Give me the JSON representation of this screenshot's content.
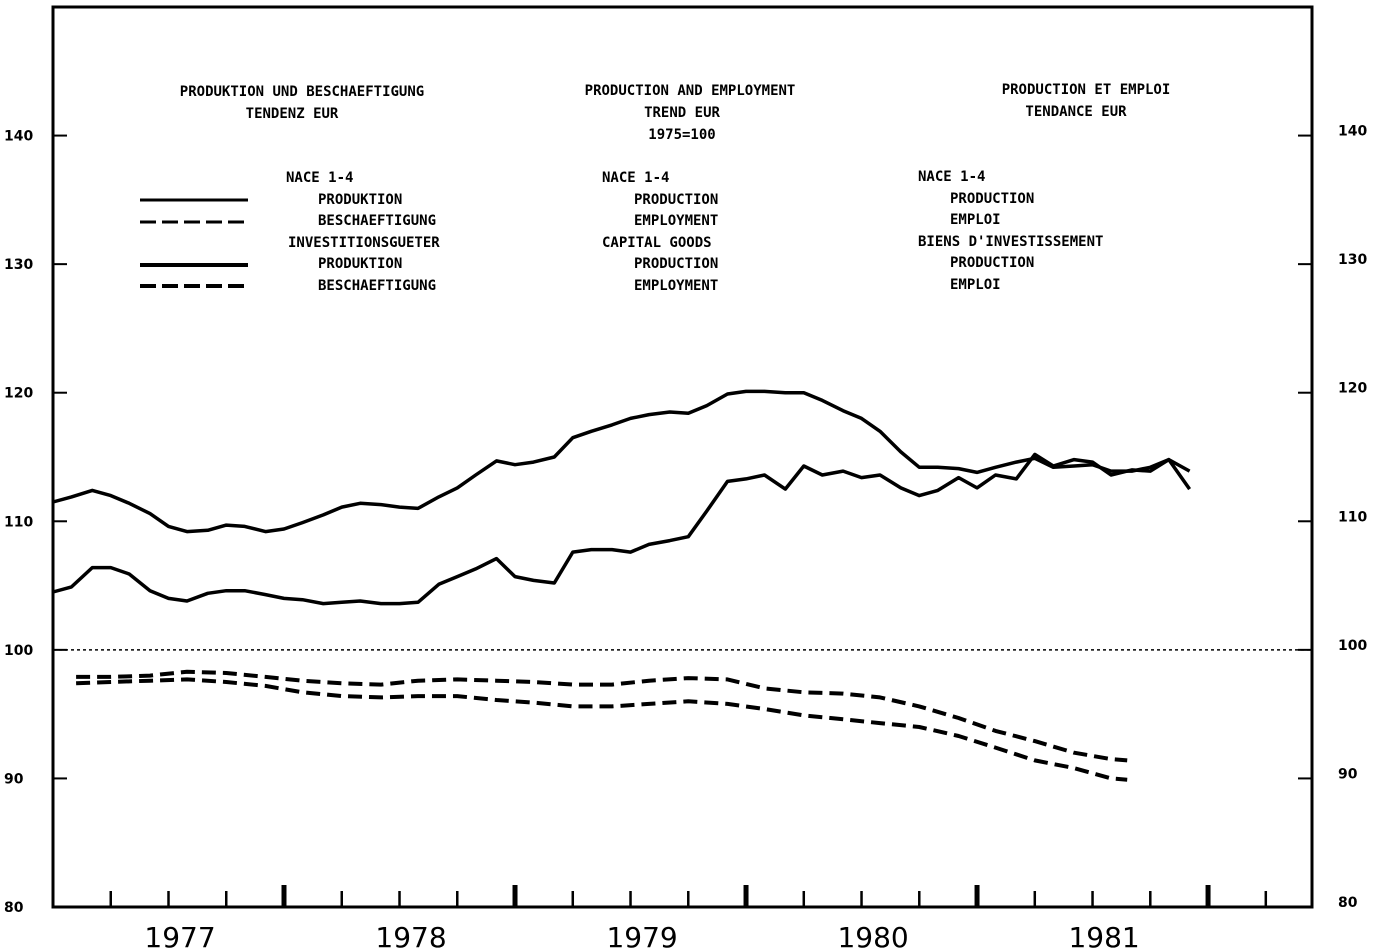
{
  "titles": [
    {
      "line1": "PRODUKTION UND BESCHAEFTIGUNG",
      "line2": "TENDENZ EUR",
      "line3": ""
    },
    {
      "line1": "PRODUCTION AND EMPLOYMENT",
      "line2": "TREND EUR",
      "line3": "1975=100"
    },
    {
      "line1": "PRODUCTION ET EMPLOI",
      "line2": "TENDANCE EUR",
      "line3": ""
    }
  ],
  "legend": {
    "de": [
      "NACE 1-4",
      "PRODUKTION",
      "BESCHAEFTIGUNG",
      "INVESTITIONSGUETER",
      "PRODUKTION",
      "BESCHAEFTIGUNG"
    ],
    "en": [
      "NACE 1-4",
      "PRODUCTION",
      "EMPLOYMENT",
      "CAPITAL GOODS",
      "PRODUCTION",
      "EMPLOYMENT"
    ],
    "fr": [
      "NACE 1-4",
      "PRODUCTION",
      "EMPLOI",
      "BIENS D'INVESTISSEMENT",
      "PRODUCTION",
      "EMPLOI"
    ]
  },
  "chart_data": {
    "type": "line",
    "ylim": [
      80,
      150
    ],
    "yticks": [
      80,
      90,
      100,
      110,
      120,
      130,
      140
    ],
    "xlim": [
      1976.5,
      1981.95
    ],
    "xlabels": [
      "1977",
      "1978",
      "1979",
      "1980",
      "1981"
    ],
    "reference_line": 100,
    "series": [
      {
        "name": "NACE 1-4 PRODUKTION",
        "style": "solid",
        "x": [
          1976.5,
          1976.58,
          1976.67,
          1976.75,
          1976.83,
          1976.92,
          1977.0,
          1977.08,
          1977.17,
          1977.25,
          1977.33,
          1977.42,
          1977.5,
          1977.58,
          1977.67,
          1977.75,
          1977.83,
          1977.92,
          1978.0,
          1978.08,
          1978.17,
          1978.25,
          1978.33,
          1978.42,
          1978.5,
          1978.58,
          1978.67,
          1978.75,
          1978.83,
          1978.92,
          1979.0,
          1979.08,
          1979.17,
          1979.25,
          1979.33,
          1979.42,
          1979.5,
          1979.58,
          1979.67,
          1979.75,
          1979.83,
          1979.92,
          1980.0,
          1980.08,
          1980.17,
          1980.25,
          1980.33,
          1980.42,
          1980.5,
          1980.58,
          1980.67,
          1980.75,
          1980.83,
          1980.92,
          1981.0,
          1981.08,
          1981.17,
          1981.25,
          1981.33,
          1981.42
        ],
        "y": [
          111.5,
          111.9,
          112.4,
          112.0,
          111.4,
          110.6,
          109.6,
          109.2,
          109.3,
          109.7,
          109.6,
          109.2,
          109.4,
          109.9,
          110.5,
          111.1,
          111.4,
          111.3,
          111.1,
          111.0,
          111.9,
          112.6,
          113.6,
          114.7,
          114.4,
          114.6,
          115.0,
          116.5,
          117.0,
          117.5,
          118.0,
          118.3,
          118.5,
          118.4,
          119.0,
          119.9,
          120.1,
          120.1,
          120.0,
          120.0,
          119.4,
          118.6,
          118.0,
          117.0,
          115.4,
          114.2,
          114.2,
          114.1,
          113.8,
          114.2,
          114.6,
          114.9,
          114.2,
          114.3,
          114.4,
          113.9,
          113.9,
          114.2,
          114.8,
          113.9
        ]
      },
      {
        "name": "NACE 1-4 BESCHAEFTIGUNG",
        "style": "dashed",
        "x": [
          1976.6,
          1976.75,
          1976.92,
          1977.08,
          1977.25,
          1977.42,
          1977.58,
          1977.75,
          1977.92,
          1978.08,
          1978.25,
          1978.42,
          1978.58,
          1978.75,
          1978.92,
          1979.08,
          1979.25,
          1979.42,
          1979.58,
          1979.75,
          1979.92,
          1980.08,
          1980.25,
          1980.42,
          1980.58,
          1980.75,
          1980.92,
          1981.08,
          1981.15
        ],
        "y": [
          97.9,
          97.9,
          98.0,
          98.3,
          98.2,
          97.9,
          97.6,
          97.4,
          97.3,
          97.6,
          97.7,
          97.6,
          97.5,
          97.3,
          97.3,
          97.6,
          97.8,
          97.7,
          97.0,
          96.7,
          96.6,
          96.3,
          95.6,
          94.7,
          93.7,
          92.9,
          92.0,
          91.5,
          91.4
        ]
      },
      {
        "name": "INVESTITIONSGUETER PRODUKTION",
        "style": "solid",
        "x": [
          1976.5,
          1976.58,
          1976.67,
          1976.75,
          1976.83,
          1976.92,
          1977.0,
          1977.08,
          1977.17,
          1977.25,
          1977.33,
          1977.42,
          1977.5,
          1977.58,
          1977.67,
          1977.75,
          1977.83,
          1977.92,
          1978.0,
          1978.08,
          1978.17,
          1978.25,
          1978.33,
          1978.42,
          1978.5,
          1978.58,
          1978.67,
          1978.75,
          1978.83,
          1978.92,
          1979.0,
          1979.08,
          1979.17,
          1979.25,
          1979.33,
          1979.42,
          1979.5,
          1979.58,
          1979.67,
          1979.75,
          1979.83,
          1979.92,
          1980.0,
          1980.08,
          1980.17,
          1980.25,
          1980.33,
          1980.42,
          1980.5,
          1980.58,
          1980.67,
          1980.75,
          1980.83,
          1980.92,
          1981.0,
          1981.08,
          1981.17,
          1981.25,
          1981.33,
          1981.42
        ],
        "y": [
          104.5,
          104.9,
          106.4,
          106.4,
          105.9,
          104.6,
          104.0,
          103.8,
          104.4,
          104.6,
          104.6,
          104.3,
          104.0,
          103.9,
          103.6,
          103.7,
          103.8,
          103.6,
          103.6,
          103.7,
          105.1,
          105.7,
          106.3,
          107.1,
          105.7,
          105.4,
          105.2,
          107.6,
          107.8,
          107.8,
          107.6,
          108.2,
          108.5,
          108.8,
          110.8,
          113.1,
          113.3,
          113.6,
          112.5,
          114.3,
          113.6,
          113.9,
          113.4,
          113.6,
          112.6,
          112.0,
          112.4,
          113.4,
          112.6,
          113.6,
          113.3,
          115.2,
          114.3,
          114.8,
          114.6,
          113.6,
          114.0,
          113.9,
          114.8,
          112.5
        ]
      },
      {
        "name": "INVESTITIONSGUETER BESCHAEFTIGUNG",
        "style": "dashed",
        "x": [
          1976.6,
          1976.75,
          1976.92,
          1977.08,
          1977.25,
          1977.42,
          1977.58,
          1977.75,
          1977.92,
          1978.08,
          1978.25,
          1978.42,
          1978.58,
          1978.75,
          1978.92,
          1979.08,
          1979.25,
          1979.42,
          1979.58,
          1979.75,
          1979.92,
          1980.08,
          1980.25,
          1980.42,
          1980.58,
          1980.75,
          1980.92,
          1981.08,
          1981.15
        ],
        "y": [
          97.4,
          97.5,
          97.6,
          97.7,
          97.5,
          97.2,
          96.7,
          96.4,
          96.3,
          96.4,
          96.4,
          96.1,
          95.9,
          95.6,
          95.6,
          95.8,
          96.0,
          95.8,
          95.4,
          94.9,
          94.6,
          94.3,
          94.0,
          93.3,
          92.4,
          91.4,
          90.8,
          90.0,
          89.9
        ]
      }
    ]
  }
}
